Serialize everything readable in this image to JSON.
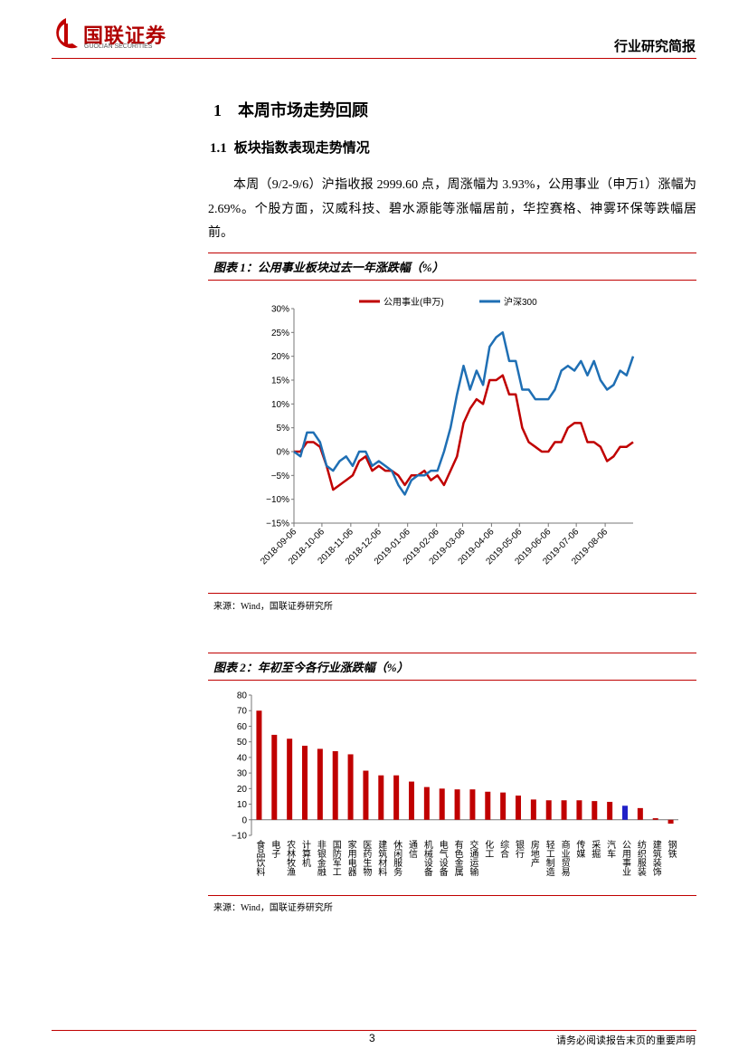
{
  "header": {
    "logo_cn": "国联证券",
    "logo_en": "GUOLIAN SECURITIES",
    "report_type": "行业研究简报"
  },
  "heading": {
    "number": "1",
    "title": "本周市场走势回顾"
  },
  "subheading": {
    "number": "1.1",
    "title": "板块指数表现走势情况"
  },
  "paragraph": "本周（9/2-9/6）沪指收报 2999.60 点，周涨幅为 3.93%，公用事业（申万1）涨幅为 2.69%。个股方面，汉威科技、碧水源能等涨幅居前，华控赛格、神雾环保等跌幅居前。",
  "figures": [
    {
      "title": "图表 1：公用事业板块过去一年涨跌幅（%）",
      "source": "来源：Wind，国联证券研究所"
    },
    {
      "title": "图表 2：年初至今各行业涨跌幅（%）",
      "source": "来源：Wind，国联证券研究所"
    }
  ],
  "chart_data": [
    {
      "type": "line",
      "x": [
        "2018-09-06",
        "2018-09-13",
        "2018-09-20",
        "2018-09-27",
        "2018-10-04",
        "2018-10-11",
        "2018-10-18",
        "2018-10-25",
        "2018-11-01",
        "2018-11-08",
        "2018-11-15",
        "2018-11-22",
        "2018-11-29",
        "2018-12-06",
        "2018-12-13",
        "2018-12-20",
        "2018-12-27",
        "2019-01-03",
        "2019-01-10",
        "2019-01-17",
        "2019-01-24",
        "2019-01-31",
        "2019-02-07",
        "2019-02-14",
        "2019-02-21",
        "2019-02-28",
        "2019-03-07",
        "2019-03-14",
        "2019-03-21",
        "2019-03-28",
        "2019-04-04",
        "2019-04-11",
        "2019-04-18",
        "2019-04-25",
        "2019-05-02",
        "2019-05-09",
        "2019-05-16",
        "2019-05-23",
        "2019-05-30",
        "2019-06-06",
        "2019-06-13",
        "2019-06-20",
        "2019-06-27",
        "2019-07-04",
        "2019-07-11",
        "2019-07-18",
        "2019-07-25",
        "2019-08-01",
        "2019-08-08",
        "2019-08-15",
        "2019-08-22",
        "2019-08-29",
        "2019-09-05"
      ],
      "series": [
        {
          "name": "公用事业(申万)",
          "color": "#c00000",
          "values": [
            0,
            0,
            2,
            2,
            1,
            -3,
            -8,
            -7,
            -6,
            -5,
            -2,
            -1,
            -4,
            -3,
            -4,
            -4,
            -5,
            -7,
            -5,
            -5,
            -4,
            -6,
            -5,
            -7,
            -4,
            -1,
            6,
            9,
            11,
            10,
            15,
            15,
            16,
            12,
            12,
            5,
            2,
            1,
            0,
            0,
            2,
            2,
            5,
            6,
            6,
            2,
            2,
            1,
            -2,
            -1,
            1,
            1,
            2
          ]
        },
        {
          "name": "沪深300",
          "color": "#1f6fb4",
          "values": [
            0,
            -1,
            4,
            4,
            2,
            -3,
            -4,
            -2,
            -1,
            -3,
            0,
            0,
            -3,
            -2,
            -3,
            -4,
            -7,
            -9,
            -6,
            -5,
            -5,
            -4,
            -4,
            0,
            5,
            12,
            18,
            13,
            17,
            14,
            22,
            24,
            25,
            19,
            19,
            13,
            13,
            11,
            11,
            11,
            13,
            17,
            18,
            17,
            19,
            16,
            19,
            15,
            13,
            14,
            17,
            16,
            20
          ]
        }
      ],
      "xlim": [
        "2018-09-06",
        "2019-09-05"
      ],
      "xticks": [
        "2018-09-06",
        "2018-10-06",
        "2018-11-06",
        "2018-12-06",
        "2019-01-06",
        "2019-02-06",
        "2019-03-06",
        "2019-04-06",
        "2019-05-06",
        "2019-06-06",
        "2019-07-06",
        "2019-08-06"
      ],
      "ylim": [
        -15,
        30
      ],
      "yticks": [
        {
          "value": -15,
          "label": "−15%"
        },
        {
          "value": -10,
          "label": "−10%"
        },
        {
          "value": -5,
          "label": "−5%"
        },
        {
          "value": 0,
          "label": "0%"
        },
        {
          "value": 5,
          "label": "5%"
        },
        {
          "value": 10,
          "label": "10%"
        },
        {
          "value": 15,
          "label": "15%"
        },
        {
          "value": 20,
          "label": "20%"
        },
        {
          "value": 25,
          "label": "25%"
        },
        {
          "value": 30,
          "label": "30%"
        }
      ],
      "legend": "top",
      "grid": false
    },
    {
      "type": "bar",
      "categories": [
        "食品饮料",
        "电子",
        "农林牧渔",
        "计算机",
        "非银金融",
        "国防军工",
        "家用电器",
        "医药生物",
        "建筑材料",
        "休闲服务",
        "通信",
        "机械设备",
        "电气设备",
        "有色金属",
        "交通运输",
        "化工",
        "综合",
        "银行",
        "房地产",
        "轻工制造",
        "商业贸易",
        "传媒",
        "采掘",
        "汽车",
        "公用事业",
        "纺织服装",
        "建筑装饰",
        "钢铁"
      ],
      "values": [
        70,
        54.5,
        52,
        47.5,
        45.5,
        44,
        42,
        31.5,
        28.5,
        28.5,
        24.5,
        21,
        20,
        19.5,
        19.5,
        18,
        17.5,
        15.5,
        13,
        12.5,
        12.5,
        12.5,
        12,
        11.5,
        9,
        7.5,
        1,
        -2.5
      ],
      "colors": [
        "#c00000",
        "#c00000",
        "#c00000",
        "#c00000",
        "#c00000",
        "#c00000",
        "#c00000",
        "#c00000",
        "#c00000",
        "#c00000",
        "#c00000",
        "#c00000",
        "#c00000",
        "#c00000",
        "#c00000",
        "#c00000",
        "#c00000",
        "#c00000",
        "#c00000",
        "#c00000",
        "#c00000",
        "#c00000",
        "#c00000",
        "#c00000",
        "#2020c8",
        "#c00000",
        "#c00000",
        "#c00000"
      ],
      "ylim": [
        -10,
        80
      ],
      "yticks": [
        {
          "value": -10,
          "label": "−10"
        },
        0,
        10,
        20,
        30,
        40,
        50,
        60,
        70,
        80
      ],
      "grid": false
    }
  ],
  "footer": {
    "page": 3,
    "disclaimer": "请务必阅读报告末页的重要声明"
  }
}
